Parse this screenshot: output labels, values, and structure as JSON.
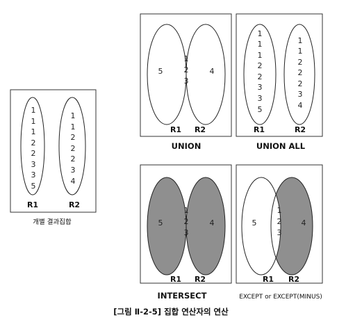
{
  "figure_title": "[그림 Ⅱ-2-5] 집합 연산자의 연산",
  "individual_sets": {
    "caption": "개별 결과집합",
    "r1_label": "R1",
    "r2_label": "R2",
    "r1_values": [
      "1",
      "1",
      "1",
      "2",
      "2",
      "3",
      "3",
      "5"
    ],
    "r2_values": [
      "1",
      "1",
      "2",
      "2",
      "2",
      "3",
      "4"
    ]
  },
  "union": {
    "caption": "UNION",
    "r1_label": "R1",
    "r2_label": "R2",
    "left_only": "5",
    "common": [
      "1",
      "2",
      "3"
    ],
    "right_only": "4"
  },
  "union_all": {
    "caption": "UNION ALL",
    "r1_label": "R1",
    "r2_label": "R2",
    "r1_values": [
      "1",
      "1",
      "1",
      "2",
      "2",
      "3",
      "3",
      "5"
    ],
    "r2_values": [
      "1",
      "1",
      "2",
      "2",
      "2",
      "3",
      "4"
    ]
  },
  "intersect": {
    "caption": "INTERSECT",
    "r1_label": "R1",
    "r2_label": "R2",
    "left_only": "5",
    "common": [
      "1",
      "2",
      "3"
    ],
    "right_only": "4"
  },
  "except": {
    "caption": "EXCEPT or EXCEPT(MINUS)",
    "r1_label": "R1",
    "r2_label": "R2",
    "left_only": "5",
    "common": [
      "1",
      "2",
      "3"
    ],
    "right_only": "4"
  },
  "colors": {
    "shade": "#8f8f8f",
    "stroke": "#222222",
    "background": "#ffffff"
  }
}
